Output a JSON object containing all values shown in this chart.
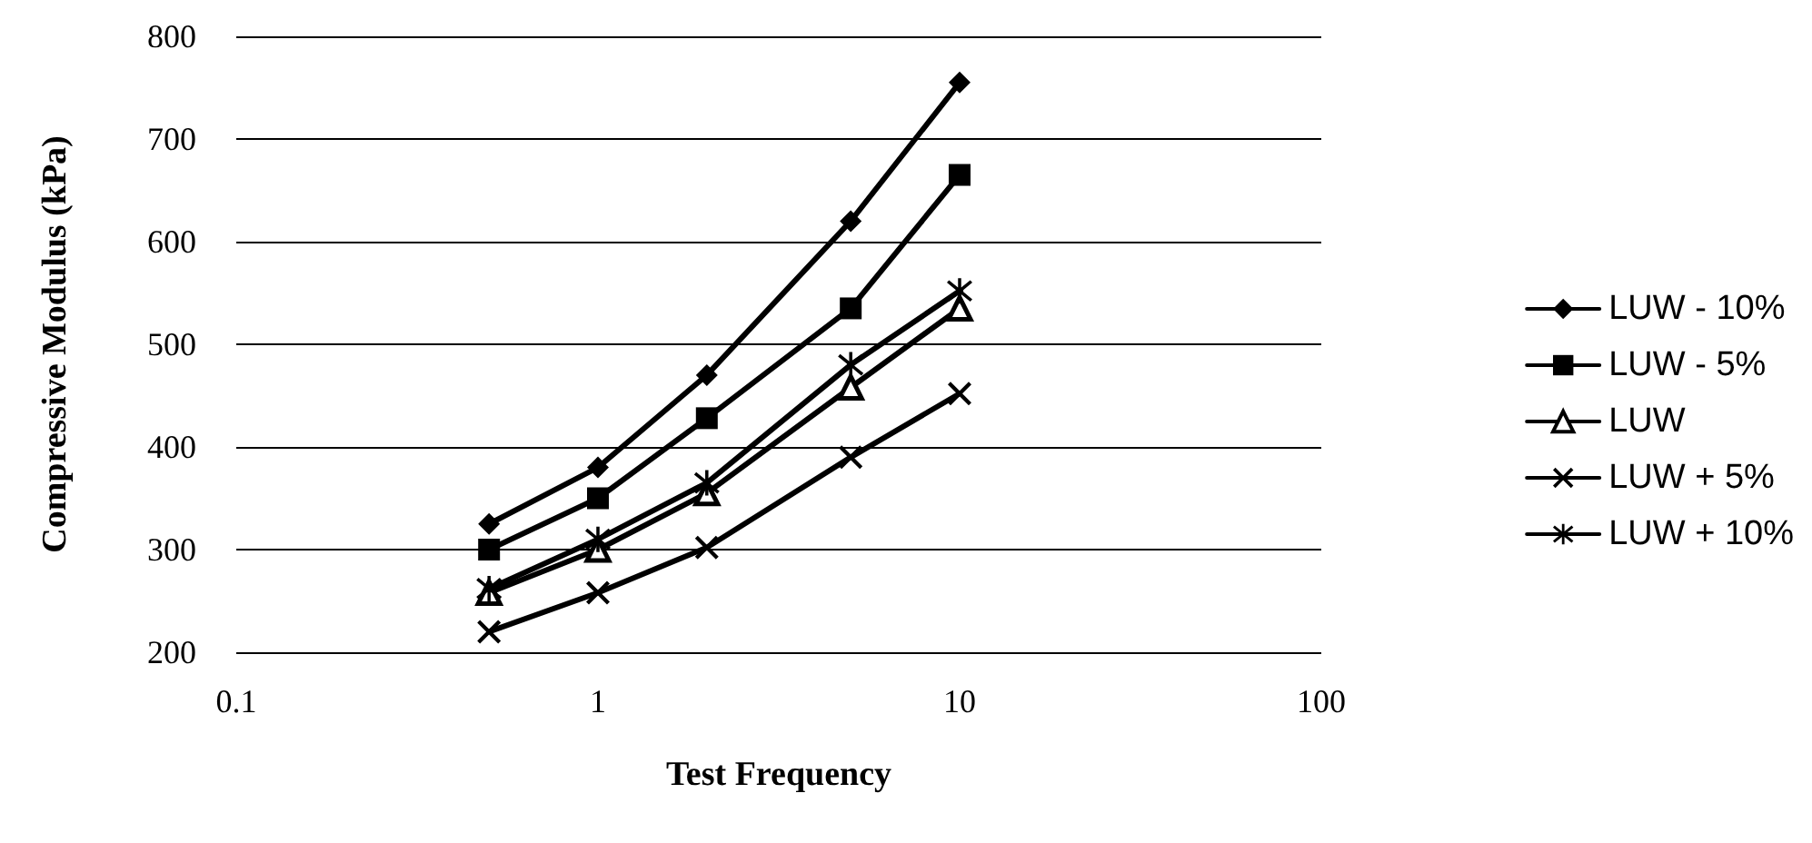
{
  "chart_data": {
    "type": "line",
    "xlabel": "Test Frequency",
    "ylabel": "Compressive Modulus (kPa)",
    "x": [
      0.5,
      1,
      2,
      5,
      10
    ],
    "series": [
      {
        "name": "LUW - 10%",
        "color": "#000000",
        "marker": "diamond",
        "values": [
          325,
          380,
          470,
          620,
          755
        ]
      },
      {
        "name": "LUW - 5%",
        "color": "#000000",
        "marker": "square",
        "values": [
          300,
          350,
          428,
          535,
          665
        ]
      },
      {
        "name": "LUW",
        "color": "#000000",
        "marker": "triangle",
        "values": [
          258,
          300,
          355,
          458,
          535
        ]
      },
      {
        "name": "LUW + 5%",
        "color": "#000000",
        "marker": "cross",
        "values": [
          220,
          258,
          302,
          390,
          452
        ]
      },
      {
        "name": "LUW + 10%",
        "color": "#000000",
        "marker": "star",
        "values": [
          262,
          310,
          365,
          480,
          552
        ]
      }
    ],
    "log": "x",
    "xlim": [
      0.1,
      100
    ],
    "xticks": [
      0.1,
      1,
      10,
      100
    ],
    "ylim": [
      200,
      800
    ],
    "yticks": [
      200,
      300,
      400,
      500,
      600,
      700,
      800
    ],
    "grid": "y",
    "legend": "right",
    "line_style": "solid"
  }
}
